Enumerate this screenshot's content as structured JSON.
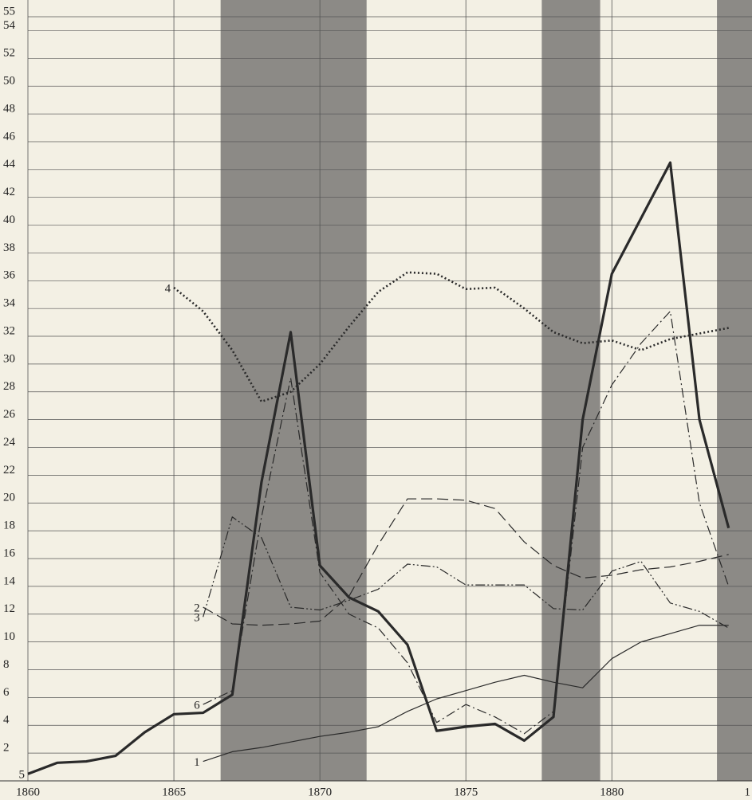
{
  "chart_data": {
    "type": "line",
    "x": [
      1860,
      1861,
      1862,
      1863,
      1864,
      1865,
      1866,
      1867,
      1868,
      1869,
      1870,
      1871,
      1872,
      1873,
      1874,
      1875,
      1876,
      1877,
      1878,
      1879,
      1880,
      1881,
      1882,
      1883,
      1884
    ],
    "series": [
      {
        "name": "1",
        "color": "#2a2a2a",
        "dash": "solid",
        "weight": "light",
        "values": [
          null,
          null,
          null,
          null,
          null,
          null,
          1.4,
          2.1,
          2.4,
          2.8,
          3.2,
          3.5,
          3.9,
          5,
          5.9,
          6.5,
          7.1,
          7.6,
          7.1,
          6.7,
          8.8,
          10,
          10.6,
          11.2,
          11.2
        ]
      },
      {
        "name": "2",
        "color": "#2a2a2a",
        "dash": "dashed",
        "weight": "light",
        "values": [
          null,
          null,
          null,
          null,
          null,
          null,
          12.5,
          11.3,
          11.2,
          11.3,
          11.5,
          13.3,
          17,
          20.3,
          20.3,
          20.2,
          19.6,
          17.2,
          15.5,
          14.6,
          14.8,
          15.2,
          15.4,
          15.8,
          16.3
        ]
      },
      {
        "name": "3",
        "color": "#2a2a2a",
        "dash": "dashdotdot",
        "weight": "light",
        "values": [
          null,
          null,
          null,
          null,
          null,
          null,
          11.8,
          19,
          17.5,
          12.5,
          12.3,
          13,
          13.8,
          15.6,
          15.4,
          14.1,
          14.1,
          14.1,
          12.4,
          12.3,
          15.1,
          15.8,
          12.8,
          12.2,
          11
        ]
      },
      {
        "name": "4",
        "color": "#2a2a2a",
        "dash": "dotted",
        "weight": "medium",
        "values": [
          null,
          null,
          null,
          null,
          null,
          35.5,
          33.8,
          31,
          27.3,
          28,
          30,
          32.7,
          35.2,
          36.6,
          36.5,
          35.4,
          35.5,
          34,
          32.3,
          31.5,
          31.7,
          31,
          31.8,
          32.2,
          32.6
        ]
      },
      {
        "name": "5",
        "color": "#2a2a2a",
        "dash": "solid",
        "weight": "heavy",
        "values": [
          0.5,
          1.3,
          1.4,
          1.8,
          3.5,
          4.8,
          4.9,
          6.2,
          21.5,
          32.3,
          15.5,
          13.2,
          12.2,
          9.8,
          3.6,
          3.9,
          4.1,
          2.9,
          4.6,
          26,
          36.5,
          40.5,
          44.5,
          26,
          18.2
        ]
      },
      {
        "name": "6",
        "color": "#2a2a2a",
        "dash": "dashdot",
        "weight": "light",
        "values": [
          null,
          null,
          null,
          null,
          null,
          null,
          5.5,
          6.5,
          19,
          29,
          15,
          12,
          11,
          8.5,
          4.2,
          5.5,
          4.6,
          3.4,
          5,
          24,
          28.5,
          31.5,
          33.8,
          20,
          14
        ]
      }
    ],
    "bands": [
      [
        1866.6,
        1871.6
      ],
      [
        1877.6,
        1879.6
      ],
      [
        1883.6,
        1884.8
      ]
    ],
    "xlim": [
      1860,
      1884.8
    ],
    "xticks": [
      1860,
      1865,
      1870,
      1875,
      1880,
      {
        "value": 1885,
        "label": "1"
      }
    ],
    "ylim": [
      0,
      55
    ],
    "yticks": [
      2,
      4,
      6,
      8,
      10,
      12,
      14,
      16,
      18,
      20,
      22,
      24,
      26,
      28,
      30,
      32,
      34,
      36,
      38,
      40,
      42,
      44,
      46,
      48,
      50,
      52,
      54,
      55
    ],
    "grid": true
  }
}
